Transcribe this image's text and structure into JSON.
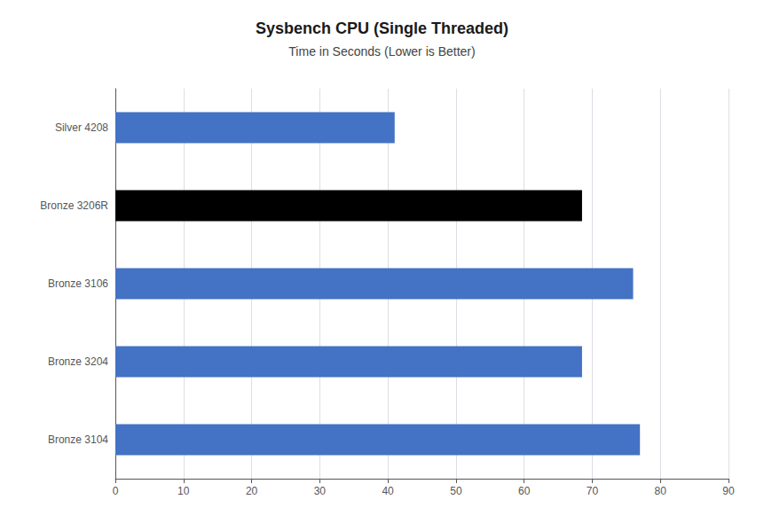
{
  "chart_data": {
    "type": "bar",
    "orientation": "horizontal",
    "title": "Sysbench CPU (Single Threaded)",
    "subtitle": "Time in Seconds (Lower is Better)",
    "categories": [
      "Silver 4208",
      "Bronze 3206R",
      "Bronze 3106",
      "Bronze 3204",
      "Bronze 3104"
    ],
    "values": [
      41,
      68.5,
      76,
      68.5,
      77
    ],
    "colors": [
      "#4472c4",
      "#000000",
      "#4472c4",
      "#4472c4",
      "#4472c4"
    ],
    "xlim": [
      0,
      90
    ],
    "xticks": [
      0,
      10,
      20,
      30,
      40,
      50,
      60,
      70,
      80,
      90
    ],
    "grid": true
  }
}
